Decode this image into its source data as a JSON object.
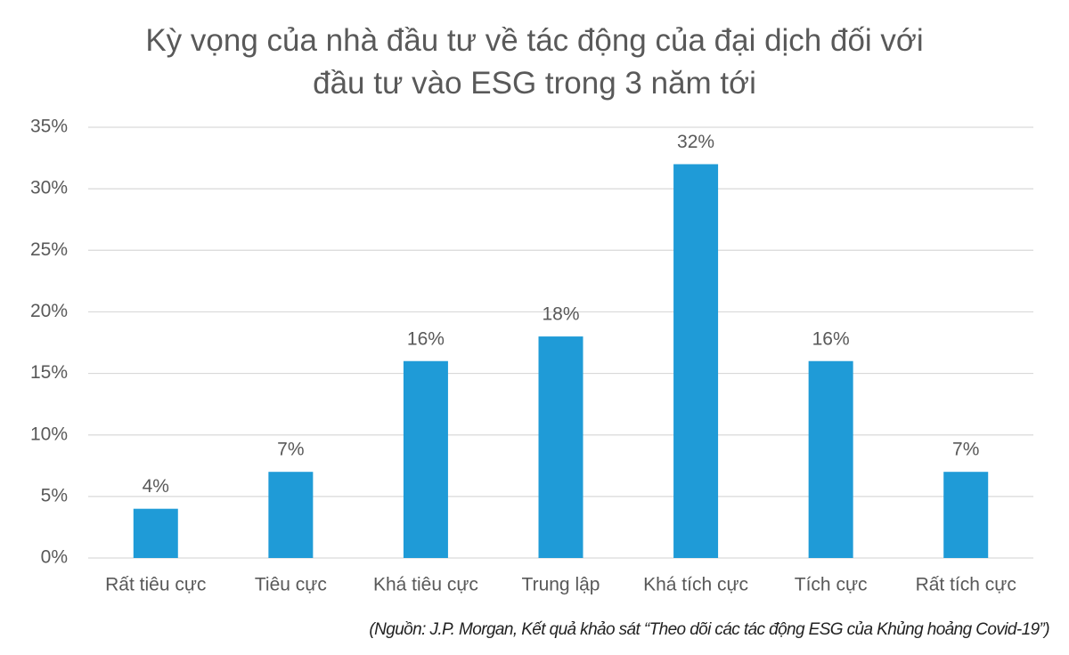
{
  "chart_data": {
    "type": "bar",
    "title": "Kỳ vọng của nhà đầu tư về tác động của đại dịch đối với đầu tư vào ESG trong 3 năm tới",
    "categories": [
      "Rất tiêu cực",
      "Tiêu cực",
      "Khá tiêu cực",
      "Trung lập",
      "Khá tích cực",
      "Tích cực",
      "Rất tích cực"
    ],
    "values": [
      4,
      7,
      16,
      18,
      32,
      16,
      7
    ],
    "value_labels": [
      "4%",
      "7%",
      "16%",
      "18%",
      "32%",
      "16%",
      "7%"
    ],
    "color": "#1f9bd7",
    "ylim": [
      0,
      35
    ],
    "yticks": [
      {
        "value": 0,
        "label": "0%"
      },
      {
        "value": 5,
        "label": "5%"
      },
      {
        "value": 10,
        "label": "10%"
      },
      {
        "value": 15,
        "label": "15%"
      },
      {
        "value": 20,
        "label": "20%"
      },
      {
        "value": 25,
        "label": "25%"
      },
      {
        "value": 30,
        "label": "30%"
      },
      {
        "value": 35,
        "label": "35%"
      }
    ],
    "grid": true,
    "source": "(Nguồn: J.P. Morgan, Kết quả khảo sát “Theo dõi các tác động ESG của Khủng hoảng Covid-19”)"
  }
}
